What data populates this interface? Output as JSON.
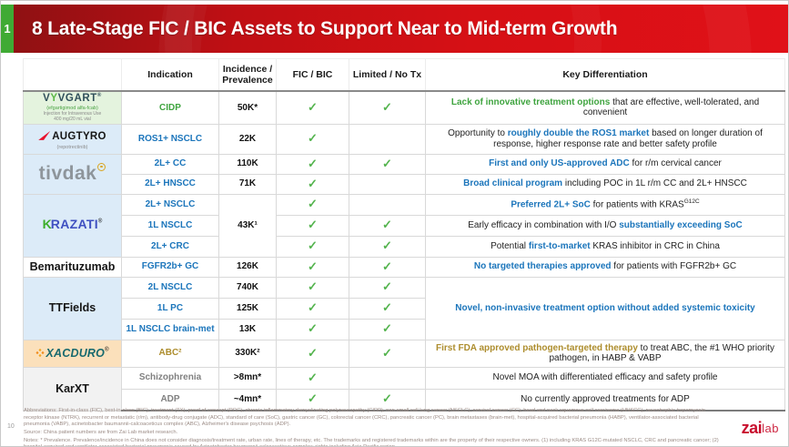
{
  "slide": {
    "index_badge": "1",
    "title": "8 Late-Stage FIC / BIC Assets to Support Near to Mid-term Growth",
    "page_number": "10"
  },
  "colors": {
    "banner_red": "#d61015",
    "banner_red_dark": "#8c1113",
    "index_tab_green": "#3faa34",
    "accent_blue": "#1b75bb",
    "accent_green": "#3fa43f",
    "accent_gold": "#ad8d2d",
    "check_green": "#54b44e",
    "row_blue_bg": "#dcebf8",
    "row_green_bg": "#e4f3de",
    "row_peach_bg": "#fbe0bb",
    "row_gray_bg": "#f2f2f2"
  },
  "glyphs": {
    "check": "✓",
    "reg": "®"
  },
  "table": {
    "headers": {
      "indication": "Indication",
      "incidence": "Incidence / Prevalence",
      "fic": "FIC / BIC",
      "limited": "Limited / No Tx",
      "keydiff": "Key Differentiation"
    },
    "groups": [
      {
        "brand": {
          "pre": "V",
          "accent": "Y",
          "rest": "VGART",
          "sub1": "(efgartigimod alfa-fcab)",
          "sub2": "Injection for Intravenous Use",
          "sub3": "400 mg/20 mL vial"
        },
        "rows": [
          {
            "indication": "CIDP",
            "incidence": "50K*",
            "fic": "✓",
            "limited": "✓",
            "kd": [
              {
                "text": "Lack of innovative treatment options",
                "em": true,
                "color": "green"
              },
              {
                "text": " that are effective, well-tolerated, and convenient"
              }
            ]
          }
        ]
      },
      {
        "brand": {
          "name": "AUGTYRO",
          "sub": "(repotrectinib)"
        },
        "rows": [
          {
            "indication": "ROS1+ NSCLC",
            "incidence": "22K",
            "fic": "✓",
            "limited": "",
            "kd": [
              {
                "text": "Opportunity to "
              },
              {
                "text": "roughly double the ROS1 market",
                "em": true,
                "color": "blue"
              },
              {
                "text": " based on longer duration of response, higher response rate and better safety profile"
              }
            ]
          }
        ]
      },
      {
        "brand": {
          "name": "tivdak"
        },
        "rows": [
          {
            "indication": "2L+ CC",
            "incidence": "110K",
            "fic": "✓",
            "limited": "✓",
            "kd": [
              {
                "text": "First and only US-approved ADC",
                "em": true,
                "color": "blue"
              },
              {
                "text": " for r/m cervical cancer"
              }
            ]
          },
          {
            "indication": "2L+ HNSCC",
            "incidence": "71K",
            "fic": "✓",
            "limited": "",
            "kd": [
              {
                "text": "Broad clinical program",
                "em": true,
                "color": "blue"
              },
              {
                "text": " including POC in 1L r/m CC and 2L+ HNSCC"
              }
            ]
          }
        ]
      },
      {
        "brand": {
          "accent": "K",
          "rest": "RAZATI"
        },
        "incidence_span": "43K¹",
        "rows": [
          {
            "indication": "2L+ NSCLC",
            "fic": "✓",
            "limited": "",
            "kd": [
              {
                "text": "Preferred 2L+ SoC",
                "em": true,
                "color": "blue"
              },
              {
                "text": " for patients with KRAS"
              },
              {
                "text": "G12C",
                "sup": true
              }
            ]
          },
          {
            "indication": "1L NSCLC",
            "fic": "✓",
            "limited": "✓",
            "kd": [
              {
                "text": "Early efficacy in combination with I/O "
              },
              {
                "text": "substantially exceeding SoC",
                "em": true,
                "color": "blue"
              }
            ]
          },
          {
            "indication": "2L+ CRC",
            "fic": "✓",
            "limited": "✓",
            "kd": [
              {
                "text": "Potential "
              },
              {
                "text": "first-to-market",
                "em": true,
                "color": "blue"
              },
              {
                "text": " KRAS inhibitor in CRC in China"
              }
            ]
          }
        ]
      },
      {
        "brand": {
          "name": "Bemarituzumab"
        },
        "rows": [
          {
            "indication": "FGFR2b+ GC",
            "incidence": "126K",
            "fic": "✓",
            "limited": "✓",
            "kd": [
              {
                "text": "No targeted therapies approved",
                "em": true,
                "color": "blue"
              },
              {
                "text": " for patients with FGFR2b+ GC"
              }
            ]
          }
        ]
      },
      {
        "brand": {
          "name": "TTFields"
        },
        "kd_span": [
          {
            "text": "Novel, non-invasive treatment option without added systemic toxicity",
            "em": true,
            "color": "blue"
          }
        ],
        "rows": [
          {
            "indication": "2L NSCLC",
            "incidence": "740K",
            "fic": "✓",
            "limited": "✓"
          },
          {
            "indication": "1L PC",
            "incidence": "125K",
            "fic": "✓",
            "limited": "✓"
          },
          {
            "indication": "1L NSCLC brain-met",
            "incidence": "13K",
            "fic": "✓",
            "limited": "✓"
          }
        ]
      },
      {
        "brand": {
          "name": "XACDURO"
        },
        "rows": [
          {
            "indication": "ABC²",
            "incidence": "330K²",
            "fic": "✓",
            "limited": "✓",
            "kd": [
              {
                "text": "First FDA approved pathogen-targeted therapy",
                "em": true,
                "color": "gold"
              },
              {
                "text": " to treat ABC, the #1 WHO priority pathogen, in HABP & VABP"
              }
            ]
          }
        ]
      },
      {
        "brand": {
          "name": "KarXT"
        },
        "rows": [
          {
            "indication": "Schizophrenia",
            "incidence": ">8mn*",
            "fic": "✓",
            "limited": "",
            "kd": [
              {
                "text": "Novel MOA with differentiated efficacy and safety profile"
              }
            ]
          },
          {
            "indication": "ADP",
            "incidence": "~4mn*",
            "fic": "✓",
            "limited": "✓",
            "kd": [
              {
                "text": "No currently approved treatments for ADP"
              }
            ]
          }
        ]
      }
    ]
  },
  "footer": {
    "abbreviations": "Abbreviations: First-in-class (FIC), best-in-class (BIC), treatment (TX), proof of concept (POC), chronic inflammatory demyelinating polyneuropathy (CIDP), non-small cell lung cancer (NSCLC), cervical cancer (CC), head and neck squamous cell carcinoma (HNSCC), neurotrophic tropomyosin receptor kinase (NTRK), recurrent or metastatic (r/m), antibody-drug conjugate (ADC), standard of care (SoC), gastric cancer (GC), colorectal cancer (CRC), pancreatic cancer (PC), brain metastases (brain-met), hospital-acquired bacterial pneumonia (HABP), ventilator-associated bacterial pneumonia (VABP), acinetobacter baumannii-calcoaceticus complex (ABC), Alzheimer's disease psychosis (ADP).",
    "source": "Source: China patient numbers are from Zai Lab market research.",
    "notes": "Notes: * Prevalence. Prevalence/incidence in China does not consider diagnosis/treatment rate, urban rate, lines of therapy, etc. The trademarks and registered trademarks within are the property of their respective owners. (1) including KRAS G12C-mutated NSCLC, CRC and pancreatic cancer; (2) hospital-acquired and ventilator-associated bacterial pneumonia caused by Acinetobacter baumannii-calcoaceticus complex; rights including Asia Pacific region."
  },
  "brand_logo": {
    "zai": "zai",
    "lab": "lab"
  }
}
